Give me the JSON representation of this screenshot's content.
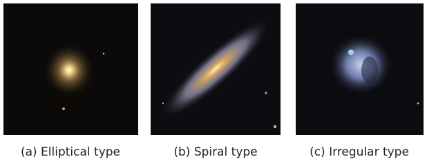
{
  "panels": [
    {
      "caption": "(a) Elliptical type"
    },
    {
      "caption": "(b) Spiral type"
    },
    {
      "caption": "(c) Irregular type"
    }
  ]
}
